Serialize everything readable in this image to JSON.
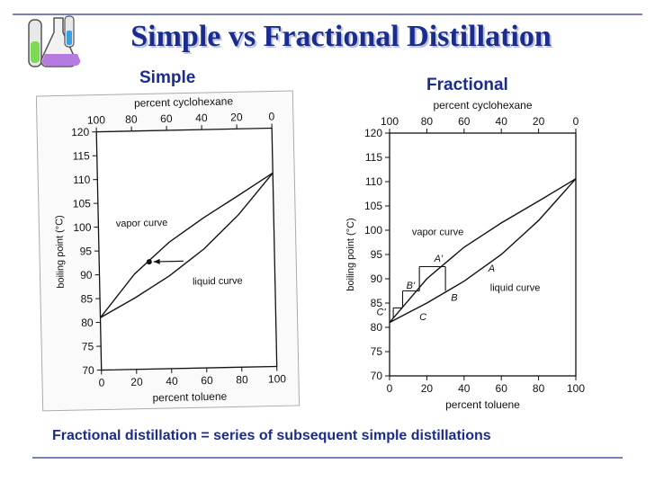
{
  "slide": {
    "title": "Simple vs Fractional Distillation",
    "simple_label": "Simple",
    "fractional_label": "Fractional",
    "footer": "Fractional distillation  = series of subsequent simple distillations",
    "icon": "chemistry-flask-icon",
    "colors": {
      "title": "#1a2c8c",
      "rule": "#7a80b8"
    }
  },
  "chart_data": [
    {
      "type": "line",
      "title": "",
      "top_axis_label": "percent cyclohexane",
      "top_ticks": [
        "100",
        "80",
        "60",
        "40",
        "20",
        "0"
      ],
      "xlabel": "percent toluene",
      "x_ticks": [
        "0",
        "20",
        "40",
        "60",
        "80",
        "100"
      ],
      "ylabel": "boiling point (°C)",
      "y_ticks": [
        "70",
        "75",
        "80",
        "85",
        "90",
        "95",
        "100",
        "105",
        "110",
        "115",
        "120"
      ],
      "xlim": [
        0,
        100
      ],
      "ylim": [
        70,
        120
      ],
      "series": [
        {
          "name": "vapor curve",
          "x": [
            0,
            20,
            40,
            60,
            80,
            100
          ],
          "y": [
            81,
            90,
            96.5,
            101.5,
            106,
            110.6
          ]
        },
        {
          "name": "liquid curve",
          "x": [
            0,
            20,
            40,
            60,
            80,
            100
          ],
          "y": [
            81,
            85,
            89.5,
            95,
            102,
            110.6
          ]
        }
      ],
      "annotations": [
        "vapor curve",
        "liquid curve"
      ]
    },
    {
      "type": "line",
      "title": "",
      "top_axis_label": "percent cyclohexane",
      "top_ticks": [
        "100",
        "80",
        "60",
        "40",
        "20",
        "0"
      ],
      "xlabel": "percent toluene",
      "x_ticks": [
        "0",
        "20",
        "40",
        "60",
        "80",
        "100"
      ],
      "ylabel": "boiling point (°C)",
      "y_ticks": [
        "70",
        "75",
        "80",
        "85",
        "90",
        "95",
        "100",
        "105",
        "110",
        "115",
        "120"
      ],
      "xlim": [
        0,
        100
      ],
      "ylim": [
        70,
        120
      ],
      "series": [
        {
          "name": "vapor curve",
          "x": [
            0,
            20,
            40,
            60,
            80,
            100
          ],
          "y": [
            81,
            90,
            96.5,
            101.5,
            106,
            110.6
          ]
        },
        {
          "name": "liquid curve",
          "x": [
            0,
            20,
            40,
            60,
            80,
            100
          ],
          "y": [
            81,
            85,
            89.5,
            95,
            102,
            110.6
          ]
        }
      ],
      "annotations": [
        "vapor curve",
        "liquid curve",
        "A",
        "A'",
        "B",
        "B'",
        "C",
        "C'"
      ]
    }
  ]
}
